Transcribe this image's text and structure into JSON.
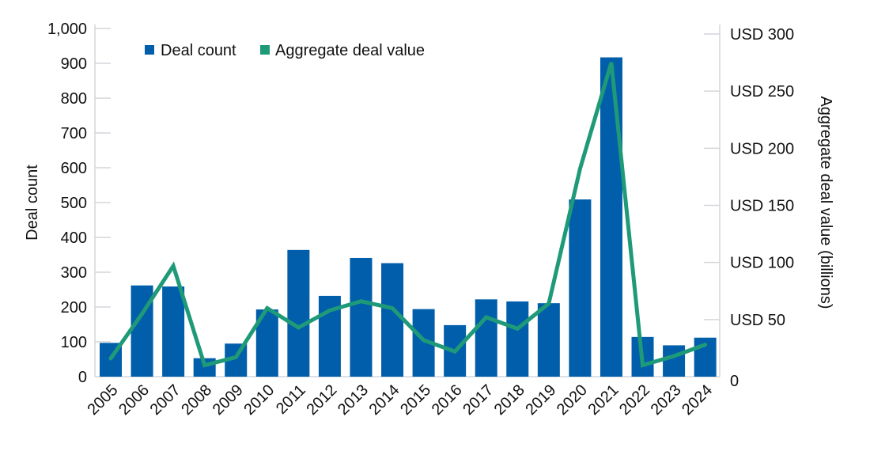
{
  "chart_data": {
    "type": "bar",
    "categories": [
      "2005",
      "2006",
      "2007",
      "2008",
      "2009",
      "2010",
      "2011",
      "2012",
      "2013",
      "2014",
      "2015",
      "2016",
      "2017",
      "2018",
      "2019",
      "2020",
      "2021",
      "2022",
      "2023",
      "2024"
    ],
    "series": [
      {
        "name": "Deal count",
        "type": "bar",
        "axis": "left",
        "color": "#005EAA",
        "values": [
          97,
          262,
          259,
          53,
          95,
          193,
          364,
          232,
          341,
          326,
          194,
          148,
          222,
          216,
          211,
          509,
          917,
          114,
          90,
          112
        ]
      },
      {
        "name": "Aggregate deal value",
        "type": "line",
        "axis": "right",
        "color": "#1F9A78",
        "values": [
          16,
          55,
          97,
          10,
          17,
          60,
          43,
          58,
          66,
          60,
          32,
          22,
          52,
          42,
          64,
          182,
          275,
          10,
          18,
          28
        ]
      }
    ],
    "ylabel": "Deal count",
    "ylim": [
      0,
      1000
    ],
    "yticks": [
      "0",
      "100",
      "200",
      "300",
      "400",
      "500",
      "600",
      "700",
      "800",
      "900",
      "1,000"
    ],
    "y2label": "Aggregate deal value (billions)",
    "y2lim": [
      0,
      300
    ],
    "y2ticks": [
      "0",
      "USD 50",
      "USD 100",
      "USD 150",
      "USD 200",
      "USD 250",
      "USD 300"
    ],
    "legend": "top-left",
    "grid": false
  }
}
